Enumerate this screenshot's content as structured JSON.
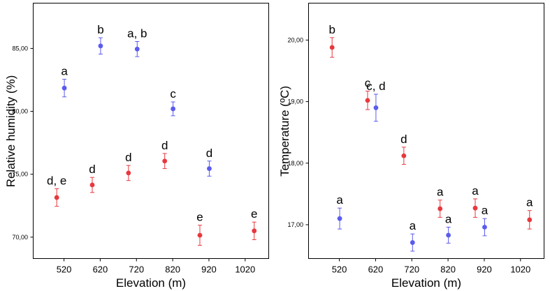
{
  "colors": {
    "red": "#e8383d",
    "blue": "#5b5bef"
  },
  "chart_data": [
    {
      "type": "scatter",
      "title": "",
      "xlabel": "Elevation (m)",
      "ylabel": "Relative humidity (%)",
      "ylim": [
        68.3,
        88.6
      ],
      "y_ticks": [
        "70,00",
        "75,00",
        "80,00",
        "85,00"
      ],
      "y_tick_values": [
        70,
        75,
        80,
        85
      ],
      "x_ticks": [
        "520",
        "620",
        "720",
        "820",
        "920",
        "1020"
      ],
      "x_tick_values": [
        520,
        620,
        720,
        820,
        920,
        1020
      ],
      "xlim": [
        435,
        1085
      ],
      "series": [
        {
          "name": "red",
          "color": "#e8383d",
          "points": [
            {
              "x": 500,
              "y": 73.15,
              "err": 0.7,
              "label": "d, e"
            },
            {
              "x": 598,
              "y": 74.15,
              "err": 0.6,
              "label": "d"
            },
            {
              "x": 698,
              "y": 75.1,
              "err": 0.6,
              "label": "d"
            },
            {
              "x": 798,
              "y": 76.05,
              "err": 0.6,
              "label": "d"
            },
            {
              "x": 895,
              "y": 70.15,
              "err": 0.8,
              "label": "e"
            },
            {
              "x": 1045,
              "y": 70.5,
              "err": 0.7,
              "label": "e"
            }
          ]
        },
        {
          "name": "blue",
          "color": "#5b5bef",
          "points": [
            {
              "x": 521,
              "y": 81.85,
              "err": 0.7,
              "label": "a"
            },
            {
              "x": 621,
              "y": 85.2,
              "err": 0.65,
              "label": "b"
            },
            {
              "x": 722,
              "y": 84.95,
              "err": 0.6,
              "label": "a, b"
            },
            {
              "x": 821,
              "y": 80.2,
              "err": 0.55,
              "label": "c"
            },
            {
              "x": 921,
              "y": 75.45,
              "err": 0.6,
              "label": "d"
            }
          ]
        }
      ]
    },
    {
      "type": "scatter",
      "title": "",
      "xlabel": "Elevation (m)",
      "ylabel": "Temperature (ºC)",
      "ylim": [
        16.45,
        20.6
      ],
      "y_ticks": [
        "17,00",
        "18,00",
        "19,00",
        "20,00"
      ],
      "y_tick_values": [
        17,
        18,
        19,
        20
      ],
      "x_ticks": [
        "520",
        "620",
        "720",
        "820",
        "920",
        "1020"
      ],
      "x_tick_values": [
        520,
        620,
        720,
        820,
        920,
        1020
      ],
      "xlim": [
        435,
        1085
      ],
      "series": [
        {
          "name": "red",
          "color": "#e8383d",
          "points": [
            {
              "x": 500,
              "y": 19.88,
              "err": 0.16,
              "label": "b"
            },
            {
              "x": 598,
              "y": 19.02,
              "err": 0.15,
              "label": "c"
            },
            {
              "x": 698,
              "y": 18.12,
              "err": 0.14,
              "label": "d"
            },
            {
              "x": 798,
              "y": 17.26,
              "err": 0.14,
              "label": "a"
            },
            {
              "x": 895,
              "y": 17.27,
              "err": 0.15,
              "label": "a"
            },
            {
              "x": 1045,
              "y": 17.08,
              "err": 0.15,
              "label": "a"
            }
          ]
        },
        {
          "name": "blue",
          "color": "#5b5bef",
          "points": [
            {
              "x": 521,
              "y": 17.1,
              "err": 0.17,
              "label": "a"
            },
            {
              "x": 621,
              "y": 18.9,
              "err": 0.22,
              "label": "c, d"
            },
            {
              "x": 722,
              "y": 16.71,
              "err": 0.14,
              "label": "a"
            },
            {
              "x": 821,
              "y": 16.83,
              "err": 0.13,
              "label": "a"
            },
            {
              "x": 921,
              "y": 16.96,
              "err": 0.14,
              "label": "a"
            }
          ]
        }
      ]
    }
  ]
}
